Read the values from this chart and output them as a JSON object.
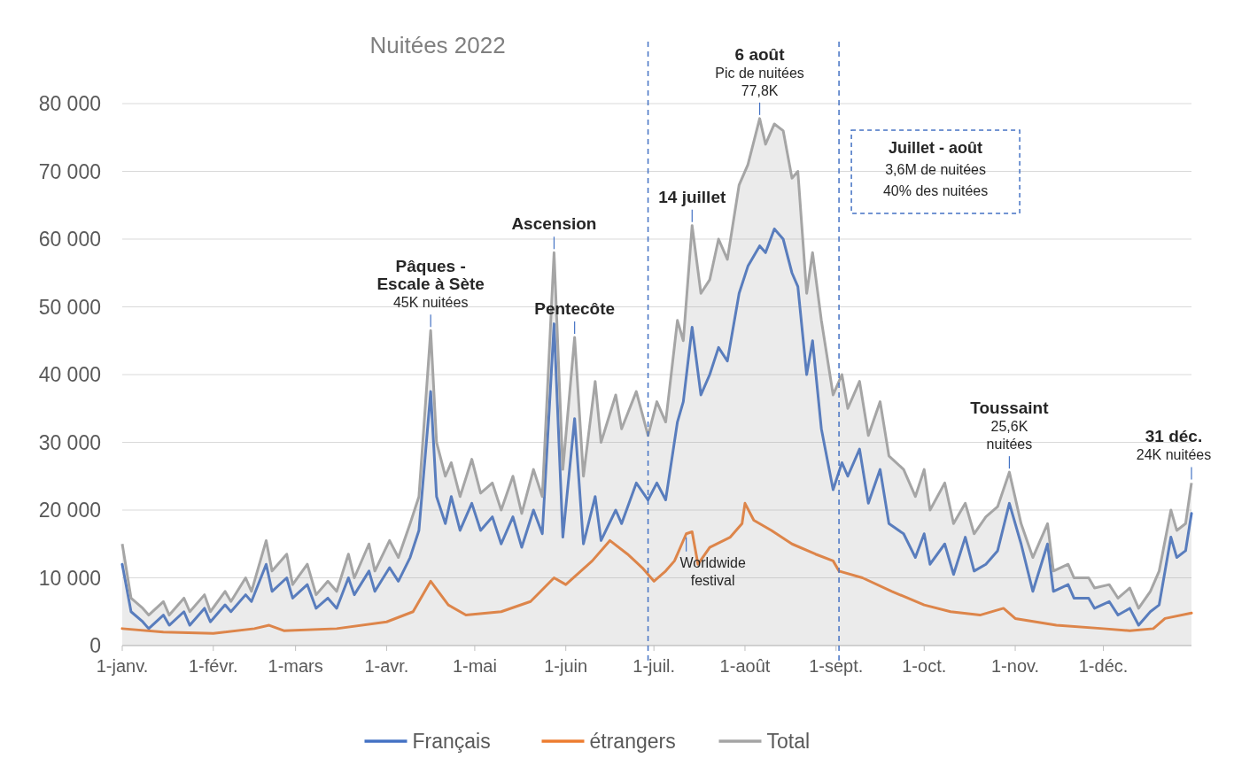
{
  "chart_data": {
    "type": "line",
    "title": "Nuitées 2022",
    "xlim": [
      "2022-01-01",
      "2022-12-31"
    ],
    "xticks": [
      {
        "value": "2022-01-01",
        "label": "1-janv."
      },
      {
        "value": "2022-02-01",
        "label": "1-févr."
      },
      {
        "value": "2022-03-01",
        "label": "1-mars"
      },
      {
        "value": "2022-04-01",
        "label": "1-avr."
      },
      {
        "value": "2022-05-01",
        "label": "1-mai"
      },
      {
        "value": "2022-06-01",
        "label": "1-juin"
      },
      {
        "value": "2022-07-01",
        "label": "1-juil."
      },
      {
        "value": "2022-08-01",
        "label": "1-août"
      },
      {
        "value": "2022-09-01",
        "label": "1-sept."
      },
      {
        "value": "2022-10-01",
        "label": "1-oct."
      },
      {
        "value": "2022-11-01",
        "label": "1-nov."
      },
      {
        "value": "2022-12-01",
        "label": "1-déc."
      }
    ],
    "ylim": [
      0,
      80000
    ],
    "yticks": [
      {
        "value": 0,
        "label": "0"
      },
      {
        "value": 10000,
        "label": "10 000"
      },
      {
        "value": 20000,
        "label": "20 000"
      },
      {
        "value": 30000,
        "label": "30 000"
      },
      {
        "value": 40000,
        "label": "40 000"
      },
      {
        "value": 50000,
        "label": "50 000"
      },
      {
        "value": 60000,
        "label": "60 000"
      },
      {
        "value": 70000,
        "label": "70 000"
      },
      {
        "value": 80000,
        "label": "80 000"
      }
    ],
    "grid": "y",
    "legend": "bottom",
    "line_style": "solid",
    "series": [
      {
        "name": "Français",
        "color": "#4472c4",
        "x": [
          "2022-01-01",
          "2022-01-04",
          "2022-01-08",
          "2022-01-10",
          "2022-01-15",
          "2022-01-17",
          "2022-01-22",
          "2022-01-24",
          "2022-01-29",
          "2022-01-31",
          "2022-02-05",
          "2022-02-07",
          "2022-02-12",
          "2022-02-14",
          "2022-02-19",
          "2022-02-21",
          "2022-02-26",
          "2022-02-28",
          "2022-03-05",
          "2022-03-08",
          "2022-03-12",
          "2022-03-15",
          "2022-03-19",
          "2022-03-21",
          "2022-03-26",
          "2022-03-28",
          "2022-04-02",
          "2022-04-05",
          "2022-04-09",
          "2022-04-12",
          "2022-04-16",
          "2022-04-18",
          "2022-04-21",
          "2022-04-23",
          "2022-04-26",
          "2022-04-30",
          "2022-05-03",
          "2022-05-07",
          "2022-05-10",
          "2022-05-14",
          "2022-05-17",
          "2022-05-21",
          "2022-05-24",
          "2022-05-28",
          "2022-05-31",
          "2022-06-04",
          "2022-06-07",
          "2022-06-11",
          "2022-06-13",
          "2022-06-18",
          "2022-06-20",
          "2022-06-25",
          "2022-06-29",
          "2022-07-02",
          "2022-07-05",
          "2022-07-09",
          "2022-07-11",
          "2022-07-14",
          "2022-07-17",
          "2022-07-20",
          "2022-07-23",
          "2022-07-26",
          "2022-07-30",
          "2022-08-02",
          "2022-08-06",
          "2022-08-08",
          "2022-08-11",
          "2022-08-14",
          "2022-08-17",
          "2022-08-19",
          "2022-08-22",
          "2022-08-24",
          "2022-08-27",
          "2022-08-31",
          "2022-09-03",
          "2022-09-05",
          "2022-09-09",
          "2022-09-12",
          "2022-09-16",
          "2022-09-19",
          "2022-09-24",
          "2022-09-28",
          "2022-10-01",
          "2022-10-03",
          "2022-10-08",
          "2022-10-11",
          "2022-10-15",
          "2022-10-18",
          "2022-10-22",
          "2022-10-26",
          "2022-10-30",
          "2022-11-03",
          "2022-11-07",
          "2022-11-12",
          "2022-11-14",
          "2022-11-19",
          "2022-11-21",
          "2022-11-26",
          "2022-11-28",
          "2022-12-03",
          "2022-12-06",
          "2022-12-10",
          "2022-12-13",
          "2022-12-17",
          "2022-12-20",
          "2022-12-24",
          "2022-12-26",
          "2022-12-29",
          "2022-12-31"
        ],
        "values": [
          12000,
          5000,
          3500,
          2500,
          4500,
          3000,
          5000,
          3000,
          5500,
          3500,
          6000,
          5000,
          7500,
          6500,
          12000,
          8000,
          10000,
          7000,
          9000,
          5500,
          7000,
          5500,
          10000,
          7500,
          11000,
          8000,
          11500,
          9500,
          13000,
          17000,
          37500,
          22000,
          18000,
          22000,
          17000,
          21000,
          17000,
          19000,
          15000,
          19000,
          14500,
          20000,
          16500,
          47500,
          16000,
          33500,
          15000,
          22000,
          15500,
          20000,
          18000,
          24000,
          21500,
          24000,
          21500,
          33000,
          36000,
          47000,
          37000,
          40000,
          44000,
          42000,
          52000,
          56000,
          59000,
          58000,
          61500,
          60000,
          55000,
          53000,
          40000,
          45000,
          32000,
          23000,
          27000,
          25000,
          29000,
          21000,
          26000,
          18000,
          16500,
          13000,
          16500,
          12000,
          15000,
          10500,
          16000,
          11000,
          12000,
          14000,
          21000,
          15000,
          8000,
          15000,
          8000,
          9000,
          7000,
          7000,
          5500,
          6500,
          4500,
          5500,
          3000,
          5000,
          6000,
          16000,
          13000,
          14000,
          19500
        ]
      },
      {
        "name": "étrangers",
        "color": "#ed7d31",
        "x": [
          "2022-01-01",
          "2022-01-15",
          "2022-02-01",
          "2022-02-15",
          "2022-02-20",
          "2022-02-25",
          "2022-03-15",
          "2022-04-01",
          "2022-04-10",
          "2022-04-16",
          "2022-04-22",
          "2022-04-28",
          "2022-05-10",
          "2022-05-20",
          "2022-05-28",
          "2022-06-01",
          "2022-06-10",
          "2022-06-16",
          "2022-06-22",
          "2022-06-27",
          "2022-07-01",
          "2022-07-05",
          "2022-07-08",
          "2022-07-12",
          "2022-07-14",
          "2022-07-16",
          "2022-07-20",
          "2022-07-27",
          "2022-07-31",
          "2022-08-01",
          "2022-08-04",
          "2022-08-10",
          "2022-08-17",
          "2022-08-25",
          "2022-08-31",
          "2022-09-02",
          "2022-09-10",
          "2022-09-20",
          "2022-10-01",
          "2022-10-10",
          "2022-10-20",
          "2022-10-28",
          "2022-11-01",
          "2022-11-15",
          "2022-12-01",
          "2022-12-10",
          "2022-12-18",
          "2022-12-22",
          "2022-12-31"
        ],
        "values": [
          2500,
          2000,
          1800,
          2500,
          3000,
          2200,
          2500,
          3500,
          5000,
          9500,
          6000,
          4500,
          5000,
          6500,
          10000,
          9000,
          12500,
          15500,
          13500,
          11500,
          9500,
          11000,
          12500,
          16500,
          16800,
          12000,
          14500,
          16000,
          18000,
          21000,
          18500,
          17000,
          15000,
          13500,
          12500,
          11000,
          10000,
          8000,
          6000,
          5000,
          4500,
          5500,
          4000,
          3000,
          2500,
          2200,
          2500,
          4000,
          4800
        ]
      },
      {
        "name": "Total",
        "color": "#a5a5a5",
        "type": "area",
        "x": [
          "2022-01-01",
          "2022-01-04",
          "2022-01-08",
          "2022-01-10",
          "2022-01-15",
          "2022-01-17",
          "2022-01-22",
          "2022-01-24",
          "2022-01-29",
          "2022-01-31",
          "2022-02-05",
          "2022-02-07",
          "2022-02-12",
          "2022-02-14",
          "2022-02-19",
          "2022-02-21",
          "2022-02-26",
          "2022-02-28",
          "2022-03-05",
          "2022-03-08",
          "2022-03-12",
          "2022-03-15",
          "2022-03-19",
          "2022-03-21",
          "2022-03-26",
          "2022-03-28",
          "2022-04-02",
          "2022-04-05",
          "2022-04-09",
          "2022-04-12",
          "2022-04-16",
          "2022-04-18",
          "2022-04-21",
          "2022-04-23",
          "2022-04-26",
          "2022-04-30",
          "2022-05-03",
          "2022-05-07",
          "2022-05-10",
          "2022-05-14",
          "2022-05-17",
          "2022-05-21",
          "2022-05-24",
          "2022-05-28",
          "2022-05-31",
          "2022-06-04",
          "2022-06-07",
          "2022-06-11",
          "2022-06-13",
          "2022-06-18",
          "2022-06-20",
          "2022-06-25",
          "2022-06-29",
          "2022-07-02",
          "2022-07-05",
          "2022-07-09",
          "2022-07-11",
          "2022-07-14",
          "2022-07-17",
          "2022-07-20",
          "2022-07-23",
          "2022-07-26",
          "2022-07-30",
          "2022-08-02",
          "2022-08-06",
          "2022-08-08",
          "2022-08-11",
          "2022-08-14",
          "2022-08-17",
          "2022-08-19",
          "2022-08-22",
          "2022-08-24",
          "2022-08-27",
          "2022-08-31",
          "2022-09-03",
          "2022-09-05",
          "2022-09-09",
          "2022-09-12",
          "2022-09-16",
          "2022-09-19",
          "2022-09-24",
          "2022-09-28",
          "2022-10-01",
          "2022-10-03",
          "2022-10-08",
          "2022-10-11",
          "2022-10-15",
          "2022-10-18",
          "2022-10-22",
          "2022-10-26",
          "2022-10-30",
          "2022-11-03",
          "2022-11-07",
          "2022-11-12",
          "2022-11-14",
          "2022-11-19",
          "2022-11-21",
          "2022-11-26",
          "2022-11-28",
          "2022-12-03",
          "2022-12-06",
          "2022-12-10",
          "2022-12-13",
          "2022-12-17",
          "2022-12-20",
          "2022-12-24",
          "2022-12-26",
          "2022-12-29",
          "2022-12-31"
        ],
        "values": [
          15000,
          7000,
          5500,
          4500,
          6500,
          4500,
          7000,
          5000,
          7500,
          5000,
          8000,
          6500,
          10000,
          8000,
          15500,
          11000,
          13500,
          9000,
          12000,
          7500,
          9500,
          8000,
          13500,
          10000,
          15000,
          11000,
          15500,
          13000,
          18000,
          22000,
          46500,
          30000,
          25000,
          27000,
          22000,
          27500,
          22500,
          24000,
          20000,
          25000,
          19500,
          26000,
          22000,
          58000,
          26000,
          45500,
          25000,
          39000,
          30000,
          37000,
          32000,
          37500,
          31000,
          36000,
          33000,
          48000,
          45000,
          62000,
          52000,
          54000,
          60000,
          57000,
          68000,
          71000,
          77800,
          74000,
          77000,
          76000,
          69000,
          70000,
          52000,
          58000,
          48000,
          37000,
          40000,
          35000,
          39000,
          31000,
          36000,
          28000,
          26000,
          22000,
          26000,
          20000,
          24000,
          18000,
          21000,
          16500,
          19000,
          20500,
          25600,
          18000,
          13000,
          18000,
          11000,
          12000,
          10000,
          10000,
          8500,
          9000,
          7000,
          8500,
          5500,
          8000,
          11000,
          20000,
          17000,
          18000,
          24000
        ]
      }
    ],
    "ref_lines": [
      {
        "axis": "x",
        "value": "2022-06-29",
        "color": "#4472c4",
        "line_style": "dashed"
      },
      {
        "axis": "x",
        "value": "2022-09-02",
        "color": "#4472c4",
        "line_style": "dashed"
      }
    ],
    "annotations": [
      {
        "text": "Pâques -\nEscale à Sète",
        "x": "2022-04-16",
        "y": 46500
      },
      {
        "text": "45K nuitées",
        "x": "2022-04-16",
        "y": 46500
      },
      {
        "text": "Ascension",
        "x": "2022-05-28",
        "y": 58000
      },
      {
        "text": "Pentecôte",
        "x": "2022-06-04",
        "y": 45500
      },
      {
        "text": "14 juillet",
        "x": "2022-07-14",
        "y": 62000
      },
      {
        "text": "6 août\nPic de nuitées\n77,8K",
        "x": "2022-08-06",
        "y": 77800
      },
      {
        "text": "Toussaint\n25,6K\nnuitées",
        "x": "2022-10-30",
        "y": 25600
      },
      {
        "text": "31 déc.\n24K nuitées",
        "x": "2022-12-31",
        "y": 24000
      },
      {
        "text": "Worldwide\nfestival",
        "x": "2022-07-12",
        "y": 16500
      },
      "Juillet - août\n3,6M de nuitées\n40% des nuitées"
    ]
  }
}
